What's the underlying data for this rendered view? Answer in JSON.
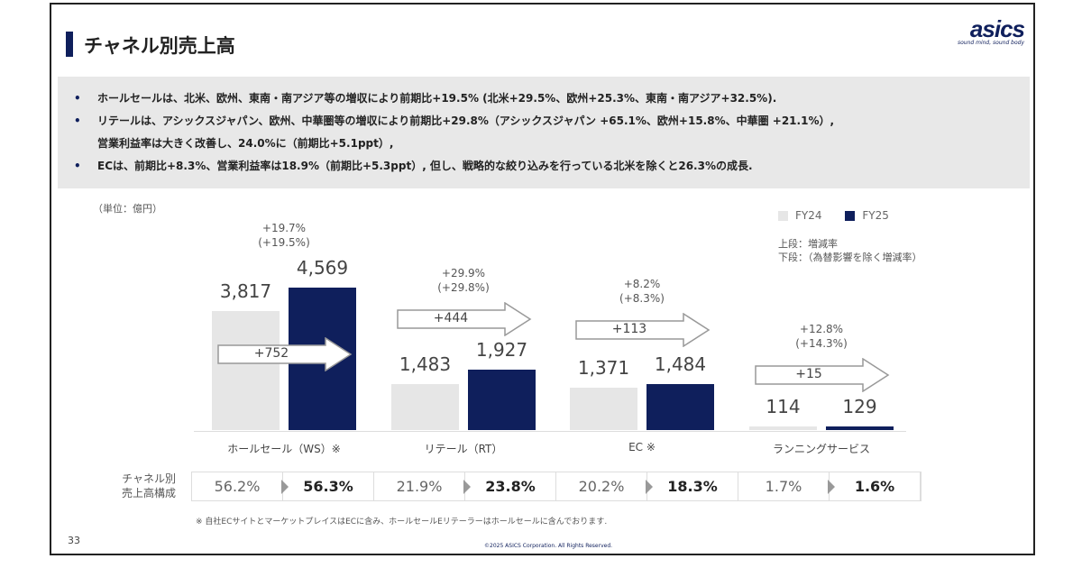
{
  "title": "チャネル別売上高",
  "logo": {
    "word": "asics",
    "tagline": "sound mind, sound body"
  },
  "summary": [
    "ホールセールは、北米、欧州、東南・南アジア等の増収により前期比+19.5% (北米+29.5%、欧州+25.3%、東南・南アジア+32.5%).",
    "リテールは、アシックスジャパン、欧州、中華圏等の増収により前期比+29.8%（アシックスジャパン +65.1%、欧州+15.8%、中華圏 +21.1%）,",
    "営業利益率は大きく改善し、24.0%に（前期比+5.1ppt）,",
    "ECは、前期比+8.3%、営業利益率は18.9%（前期比+5.3ppt）, 但し、戦略的な絞り込みを行っている北米を除くと26.3%の成長."
  ],
  "unit": "（単位：億円）",
  "legend_note": [
    "上段：増減率",
    "下段：（為替影響を除く増減率）"
  ],
  "chart_data": {
    "type": "bar",
    "title": "チャネル別売上高",
    "ylabel": "億円",
    "ylim": [
      0,
      4569
    ],
    "series": [
      {
        "name": "FY24",
        "color": "#e6e6e6",
        "values": [
          3817,
          1483,
          1371,
          114
        ]
      },
      {
        "name": "FY25",
        "color": "#0f1f5c",
        "values": [
          4569,
          1927,
          1484,
          129
        ]
      }
    ],
    "categories": [
      "ホールセール（WS）※",
      "リテール（RT）",
      "EC ※",
      "ランニングサービス"
    ],
    "value_labels": {
      "FY24": [
        "3,817",
        "1,483",
        "1,371",
        "114"
      ],
      "FY25": [
        "4,569",
        "1,927",
        "1,484",
        "129"
      ]
    },
    "diff_labels": [
      "+752",
      "+444",
      "+113",
      "+15"
    ],
    "growth": [
      "+19.7%",
      "+29.9%",
      "+8.2%",
      "+12.8%"
    ],
    "growth_fx": [
      "(+19.5%)",
      "(+29.8%)",
      "(+8.3%)",
      "(+14.3%)"
    ]
  },
  "share": {
    "label": [
      "チャネル別",
      "売上高構成"
    ],
    "fy24": [
      "56.2%",
      "21.9%",
      "20.2%",
      "1.7%"
    ],
    "fy25": [
      "56.3%",
      "23.8%",
      "18.3%",
      "1.6%"
    ]
  },
  "footnote": "※ 自社ECサイトとマーケットプレイスはECに含み、ホールセールEリテーラーはホールセールに含んでおります.",
  "page_number": "33",
  "copyright": "©2025 ASICS Corporation. All Rights Reserved."
}
